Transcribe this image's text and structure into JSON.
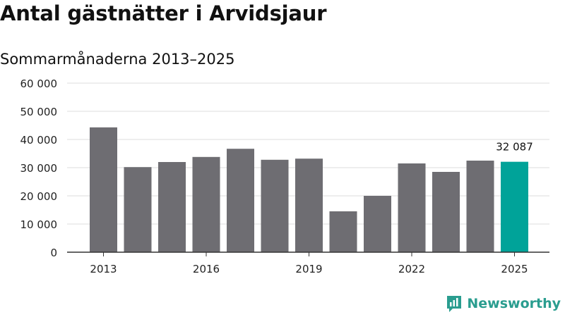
{
  "header": {
    "title": "Antal gästnätter i Arvidsjaur",
    "subtitle": "Sommarmånaderna 2013–2025"
  },
  "brand": {
    "name": "Newsworthy",
    "icon": "newsworthy-logo-icon"
  },
  "colors": {
    "bar": "#6e6d72",
    "highlight": "#00a399",
    "grid": "#dddddd",
    "brand": "#2a9d8f"
  },
  "chart_data": {
    "type": "bar",
    "categories": [
      "2013",
      "2014",
      "2015",
      "2016",
      "2017",
      "2018",
      "2019",
      "2020",
      "2021",
      "2022",
      "2023",
      "2024",
      "2025"
    ],
    "values": [
      44300,
      30200,
      32000,
      33800,
      36700,
      32800,
      33200,
      14500,
      20000,
      31500,
      28500,
      32500,
      32087
    ],
    "x_tick_labels": [
      "2013",
      "2016",
      "2019",
      "2022",
      "2025"
    ],
    "y_ticks": [
      0,
      10000,
      20000,
      30000,
      40000,
      50000,
      60000
    ],
    "y_tick_labels": [
      "0",
      "10 000",
      "20 000",
      "30 000",
      "40 000",
      "50 000",
      "60 000"
    ],
    "ylim": [
      0,
      60000
    ],
    "highlight_index": 12,
    "data_label": "32 087",
    "grid": true
  }
}
